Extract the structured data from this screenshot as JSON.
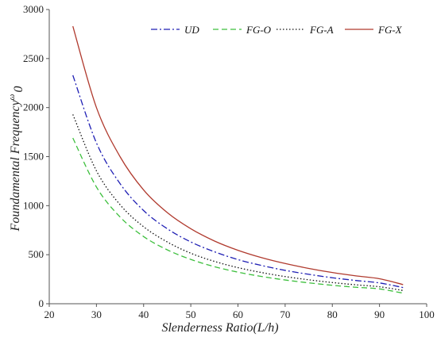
{
  "chart_data": {
    "type": "line",
    "xlabel": "Slenderness Ratio(L/h)",
    "ylabel_main": "Foundamental Frequency",
    "ylabel_symbol": "ω",
    "ylabel_subscript": "0",
    "xlim": [
      20,
      100
    ],
    "ylim": [
      0,
      3000
    ],
    "x_ticks": [
      "20",
      "30",
      "40",
      "50",
      "60",
      "70",
      "80",
      "90",
      "100"
    ],
    "y_ticks": [
      "0",
      "500",
      "1000",
      "1500",
      "2000",
      "2500",
      "3000"
    ],
    "x_tick_values": [
      20,
      30,
      40,
      50,
      60,
      70,
      80,
      90,
      100
    ],
    "y_tick_values": [
      0,
      500,
      1000,
      1500,
      2000,
      2500,
      3000
    ],
    "grid": false,
    "legend_position": "top-right",
    "x": [
      25,
      30,
      35,
      40,
      45,
      50,
      55,
      60,
      65,
      70,
      75,
      80,
      85,
      90,
      95
    ],
    "series": [
      {
        "name": "UD",
        "color": "#1f1fb4",
        "dash": "dashdot",
        "values": [
          2330,
          1640,
          1225,
          950,
          765,
          630,
          530,
          450,
          390,
          340,
          300,
          265,
          237,
          212,
          165
        ]
      },
      {
        "name": "FG-O",
        "color": "#3dbf3d",
        "dash": "dashed",
        "values": [
          1690,
          1190,
          885,
          685,
          550,
          452,
          378,
          322,
          278,
          242,
          213,
          188,
          168,
          151,
          108
        ]
      },
      {
        "name": "FG-A",
        "color": "#111111",
        "dash": "dotted",
        "values": [
          1930,
          1355,
          1010,
          785,
          630,
          515,
          432,
          368,
          318,
          277,
          244,
          216,
          193,
          173,
          135
        ]
      },
      {
        "name": "FG-X",
        "color": "#b03a2e",
        "dash": "solid",
        "values": [
          2830,
          2000,
          1500,
          1160,
          930,
          765,
          640,
          545,
          470,
          410,
          360,
          318,
          284,
          255,
          195
        ]
      }
    ]
  }
}
